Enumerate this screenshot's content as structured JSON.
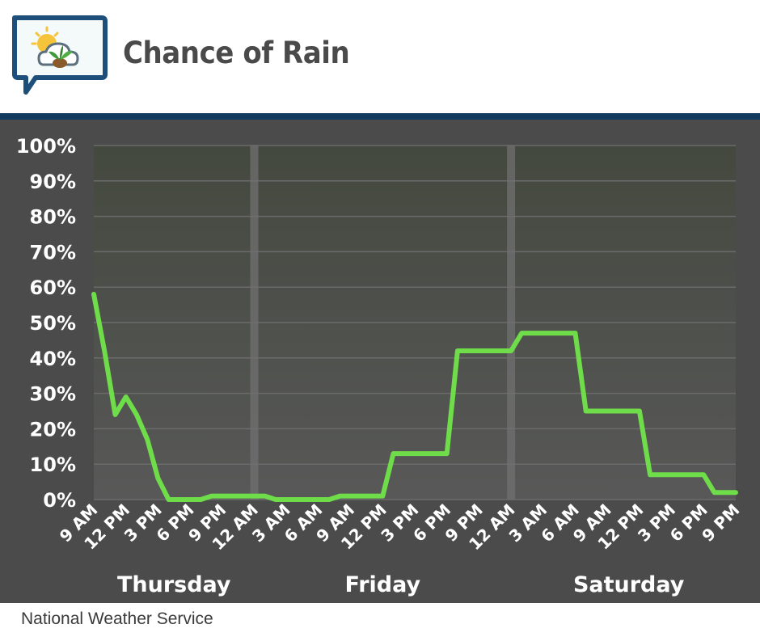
{
  "header": {
    "title": "Chance of Rain",
    "logo_icon": "weather-sun-cloud-plant-icon"
  },
  "footer": {
    "source": "National Weather Service"
  },
  "colors": {
    "header_rule": "#123a5c",
    "panel_bg": "#4b4b4b",
    "line": "#6fdc4a",
    "grid": "#6b6b6b",
    "day_divider": "#707070"
  },
  "chart_data": {
    "type": "line",
    "title": "Chance of Rain",
    "xlabel": "",
    "ylabel": "",
    "ylim": [
      0,
      100
    ],
    "y_ticks": [
      "100%",
      "90%",
      "80%",
      "70%",
      "60%",
      "50%",
      "40%",
      "30%",
      "20%",
      "10%",
      "0%"
    ],
    "y_tick_values": [
      100,
      90,
      80,
      70,
      60,
      50,
      40,
      30,
      20,
      10,
      0
    ],
    "grid": true,
    "x_range_hours": [
      0,
      60
    ],
    "x_tick_labels": [
      "9 AM",
      "12 PM",
      "3 PM",
      "6 PM",
      "9 PM",
      "12 AM",
      "3 AM",
      "6 AM",
      "9 AM",
      "12 PM",
      "3 PM",
      "6 PM",
      "9 PM",
      "12 AM",
      "3 AM",
      "6 AM",
      "9 AM",
      "12 PM",
      "3 PM",
      "6 PM",
      "9 PM"
    ],
    "x_tick_hours": [
      0,
      3,
      6,
      9,
      12,
      15,
      18,
      21,
      24,
      27,
      30,
      33,
      36,
      39,
      42,
      45,
      48,
      51,
      54,
      57,
      60
    ],
    "days": [
      {
        "label": "Thursday",
        "center_hour": 7.5
      },
      {
        "label": "Friday",
        "center_hour": 27
      },
      {
        "label": "Saturday",
        "center_hour": 50
      }
    ],
    "day_dividers_hours": [
      15,
      39
    ],
    "series": [
      {
        "x_hours": [
          0,
          1,
          2,
          3,
          4,
          5,
          6,
          7,
          8,
          9,
          10,
          11,
          12,
          13,
          14,
          15,
          16,
          17,
          18,
          19,
          20,
          21,
          22,
          23,
          24,
          25,
          26,
          27,
          28,
          29,
          30,
          31,
          32,
          33,
          34,
          35,
          36,
          37,
          38,
          39,
          40,
          41,
          42,
          43,
          44,
          45,
          46,
          47,
          48,
          49,
          50,
          51,
          52,
          53,
          54,
          55,
          56,
          57,
          58,
          59,
          60
        ],
        "values": [
          58,
          42,
          24,
          29,
          24,
          17,
          6,
          0,
          0,
          0,
          0,
          1,
          1,
          1,
          1,
          1,
          1,
          0,
          0,
          0,
          0,
          0,
          0,
          1,
          1,
          1,
          1,
          1,
          13,
          13,
          13,
          13,
          13,
          13,
          42,
          42,
          42,
          42,
          42,
          42,
          47,
          47,
          47,
          47,
          47,
          47,
          25,
          25,
          25,
          25,
          25,
          25,
          7,
          7,
          7,
          7,
          7,
          7,
          2,
          2,
          2
        ]
      }
    ]
  }
}
